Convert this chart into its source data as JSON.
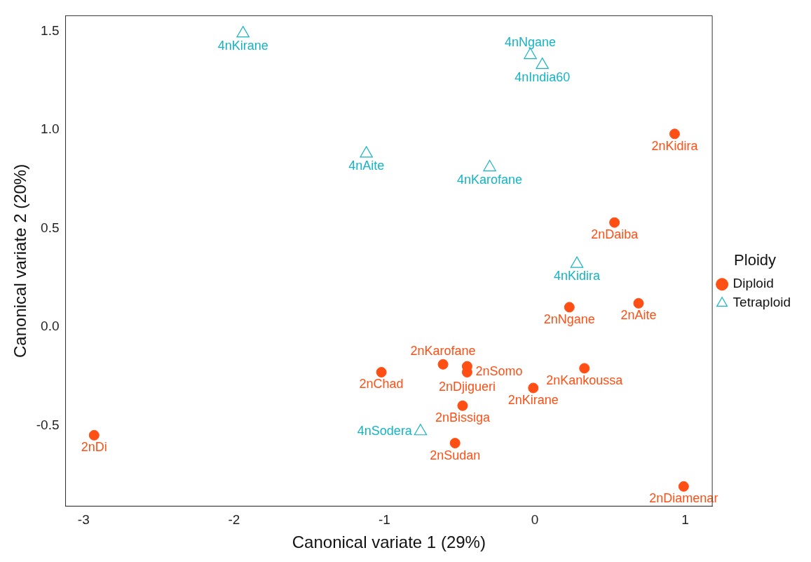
{
  "chart_data": {
    "type": "scatter",
    "xlabel": "Canonical variate 1 (29%)",
    "ylabel": "Canonical variate 2 (20%)",
    "legend_title": "Ploidy",
    "legend": "right",
    "grid": false,
    "xlim": [
      -3.12,
      1.18
    ],
    "ylim": [
      -0.91,
      1.58
    ],
    "xticks": [
      -3,
      -2,
      -1,
      0,
      1
    ],
    "yticks": [
      {
        "value": -0.5,
        "label": "-0.5"
      },
      {
        "value": 0,
        "label": "0.0"
      },
      {
        "value": 0.5,
        "label": "0.5"
      },
      {
        "value": 1,
        "label": "1.0"
      },
      {
        "value": 1.5,
        "label": "1.5"
      }
    ],
    "series": [
      {
        "name": "Diploid",
        "color": "#ff4f14",
        "marker": "circle",
        "x": [
          0.93,
          0.53,
          0.69,
          0.23,
          -0.61,
          -0.45,
          -0.45,
          -1.02,
          0.33,
          -0.01,
          -0.48,
          -0.53,
          -2.93,
          0.99
        ],
        "values": [
          0.98,
          0.53,
          0.12,
          0.1,
          -0.19,
          -0.2,
          -0.23,
          -0.23,
          -0.21,
          -0.31,
          -0.4,
          -0.59,
          -0.55,
          -0.81
        ]
      },
      {
        "name": "Tetraploid",
        "color": "#14b4c4",
        "marker": "triangle",
        "x": [
          -1.94,
          -0.03,
          0.05,
          -1.12,
          -0.3,
          0.28,
          -0.76
        ],
        "values": [
          1.49,
          1.38,
          1.33,
          0.88,
          0.81,
          0.32,
          -0.53
        ]
      }
    ],
    "annotations": [
      {
        "text": "2nKidira",
        "x": 0.93,
        "y": 0.98
      },
      {
        "text": "2nDaiba",
        "x": 0.53,
        "y": 0.53
      },
      {
        "text": "2nAite",
        "x": 0.69,
        "y": 0.12
      },
      {
        "text": "2nNgane",
        "x": 0.23,
        "y": 0.1
      },
      {
        "text": "2nKarofane",
        "x": -0.61,
        "y": -0.19
      },
      {
        "text": "2nDjigueri",
        "x": -0.45,
        "y": -0.2
      },
      {
        "text": "2nSomo",
        "x": -0.45,
        "y": -0.23
      },
      {
        "text": "2nChad",
        "x": -1.02,
        "y": -0.23
      },
      {
        "text": "2nKankoussa",
        "x": 0.33,
        "y": -0.21
      },
      {
        "text": "2nKirane",
        "x": -0.01,
        "y": -0.31
      },
      {
        "text": "2nBissiga",
        "x": -0.48,
        "y": -0.4
      },
      {
        "text": "2nSudan",
        "x": -0.53,
        "y": -0.59
      },
      {
        "text": "2nDi",
        "x": -2.93,
        "y": -0.55
      },
      {
        "text": "2nDiamenar",
        "x": 0.99,
        "y": -0.81
      },
      {
        "text": "4nKirane",
        "x": -1.94,
        "y": 1.49
      },
      {
        "text": "4nNgane",
        "x": -0.03,
        "y": 1.38
      },
      {
        "text": "4nIndia60",
        "x": 0.05,
        "y": 1.33
      },
      {
        "text": "4nAite",
        "x": -1.12,
        "y": 0.88
      },
      {
        "text": "4nKarofane",
        "x": -0.3,
        "y": 0.81
      },
      {
        "text": "4nKidira",
        "x": 0.28,
        "y": 0.32
      },
      {
        "text": "4nSodera",
        "x": -0.76,
        "y": -0.53
      }
    ]
  }
}
